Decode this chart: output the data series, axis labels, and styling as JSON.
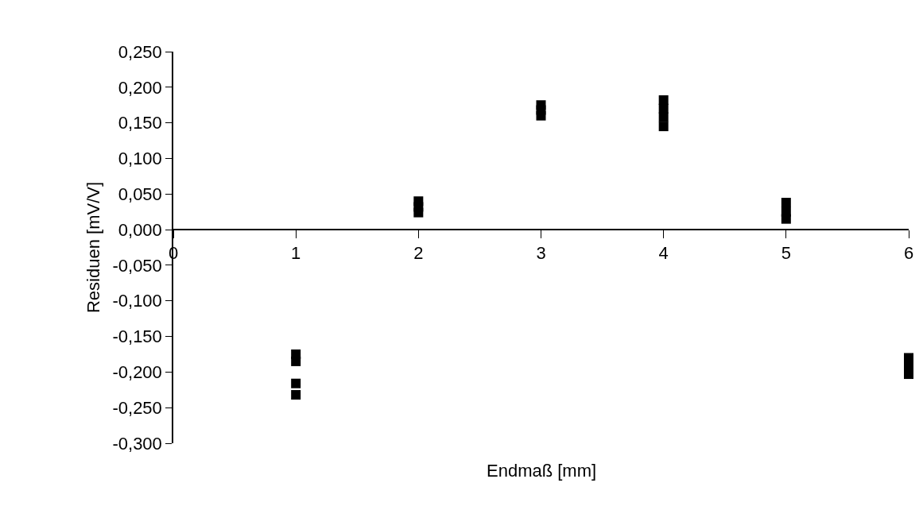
{
  "chart_data": {
    "type": "scatter",
    "xlabel": "Endmaß [mm]",
    "ylabel": "Residuen [mV/V]",
    "x": [
      1,
      1,
      1,
      1,
      2,
      2,
      2,
      3,
      3,
      3,
      4,
      4,
      4,
      4,
      5,
      5,
      5,
      6,
      6,
      6
    ],
    "series": [
      {
        "color": "#000000",
        "values": [
          -0.175,
          -0.185,
          -0.216,
          -0.232,
          0.04,
          0.032,
          0.024,
          0.175,
          0.168,
          0.16,
          0.182,
          0.17,
          0.158,
          0.145,
          0.038,
          0.025,
          0.015,
          -0.18,
          -0.192,
          -0.203
        ]
      }
    ],
    "marker": "square",
    "xlim": [
      0,
      6
    ],
    "xticks": [
      0,
      1,
      2,
      3,
      4,
      5,
      6
    ],
    "ylim": [
      -0.3,
      0.25
    ],
    "yticks": [
      {
        "value": -0.3,
        "label": "-0,300"
      },
      {
        "value": -0.25,
        "label": "-0,250"
      },
      {
        "value": -0.2,
        "label": "-0,200"
      },
      {
        "value": -0.15,
        "label": "-0,150"
      },
      {
        "value": -0.1,
        "label": "-0,100"
      },
      {
        "value": -0.05,
        "label": "-0,050"
      },
      {
        "value": 0,
        "label": "0,000"
      },
      {
        "value": 0.05,
        "label": "0,050"
      },
      {
        "value": 0.1,
        "label": "0,100"
      },
      {
        "value": 0.15,
        "label": "0,150"
      },
      {
        "value": 0.2,
        "label": "0,200"
      },
      {
        "value": 0.25,
        "label": "0,250"
      }
    ]
  }
}
